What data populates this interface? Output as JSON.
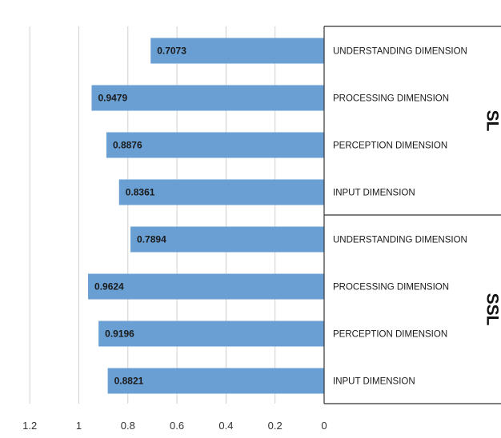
{
  "chart_data": {
    "type": "bar",
    "orientation": "horizontal-reversed",
    "xlim": [
      0,
      1.2
    ],
    "x_ticks": [
      "1.2",
      "1",
      "0.8",
      "0.6",
      "0.4",
      "0.2",
      "0"
    ],
    "grid": true,
    "bar_color": "#6a9fd4",
    "groups": [
      {
        "name": "SL",
        "categories": [
          "UNDERSTANDING DIMENSION",
          "PROCESSING DIMENSION",
          "PERCEPTION DIMENSION",
          "INPUT DIMENSION"
        ],
        "values": [
          0.7073,
          0.9479,
          0.8876,
          0.8361
        ],
        "labels": [
          "0.7073",
          "0.9479",
          "0.8876",
          "0.8361"
        ]
      },
      {
        "name": "SSL",
        "categories": [
          "UNDERSTANDING DIMENSION",
          "PROCESSING DIMENSION",
          "PERCEPTION DIMENSION",
          "INPUT DIMENSION"
        ],
        "values": [
          0.7894,
          0.9624,
          0.9196,
          0.8821
        ],
        "labels": [
          "0.7894",
          "0.9624",
          "0.9196",
          "0.8821"
        ]
      }
    ]
  }
}
